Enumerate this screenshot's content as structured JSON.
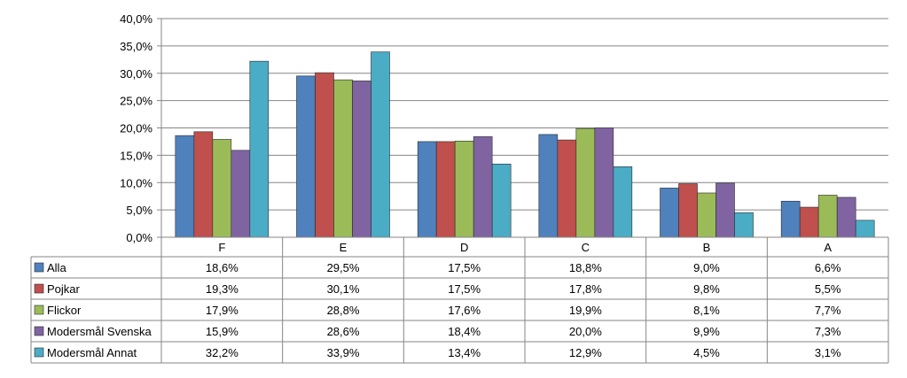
{
  "chart_data": {
    "type": "bar",
    "categories": [
      "F",
      "E",
      "D",
      "C",
      "B",
      "A"
    ],
    "ylim": [
      0,
      40
    ],
    "yticks": [
      "0,0%",
      "5,0%",
      "10,0%",
      "15,0%",
      "20,0%",
      "25,0%",
      "30,0%",
      "35,0%",
      "40,0%"
    ],
    "grid": true,
    "legend": "data-table",
    "series": [
      {
        "name": "Alla",
        "color": "#4f81bd",
        "values": [
          18.6,
          29.5,
          17.5,
          18.8,
          9.0,
          6.6
        ],
        "labels": [
          "18,6%",
          "29,5%",
          "17,5%",
          "18,8%",
          "9,0%",
          "6,6%"
        ]
      },
      {
        "name": "Pojkar",
        "color": "#c0504d",
        "values": [
          19.3,
          30.1,
          17.5,
          17.8,
          9.8,
          5.5
        ],
        "labels": [
          "19,3%",
          "30,1%",
          "17,5%",
          "17,8%",
          "9,8%",
          "5,5%"
        ]
      },
      {
        "name": "Flickor",
        "color": "#9bbb59",
        "values": [
          17.9,
          28.8,
          17.6,
          19.9,
          8.1,
          7.7
        ],
        "labels": [
          "17,9%",
          "28,8%",
          "17,6%",
          "19,9%",
          "8,1%",
          "7,7%"
        ]
      },
      {
        "name": "Modersmål Svenska",
        "color": "#8064a2",
        "values": [
          15.9,
          28.6,
          18.4,
          20.0,
          9.9,
          7.3
        ],
        "labels": [
          "15,9%",
          "28,6%",
          "18,4%",
          "20,0%",
          "9,9%",
          "7,3%"
        ]
      },
      {
        "name": "Modersmål Annat",
        "color": "#4bacc6",
        "values": [
          32.2,
          33.9,
          13.4,
          12.9,
          4.5,
          3.1
        ],
        "labels": [
          "32,2%",
          "33,9%",
          "13,4%",
          "12,9%",
          "4,5%",
          "3,1%"
        ]
      }
    ]
  }
}
